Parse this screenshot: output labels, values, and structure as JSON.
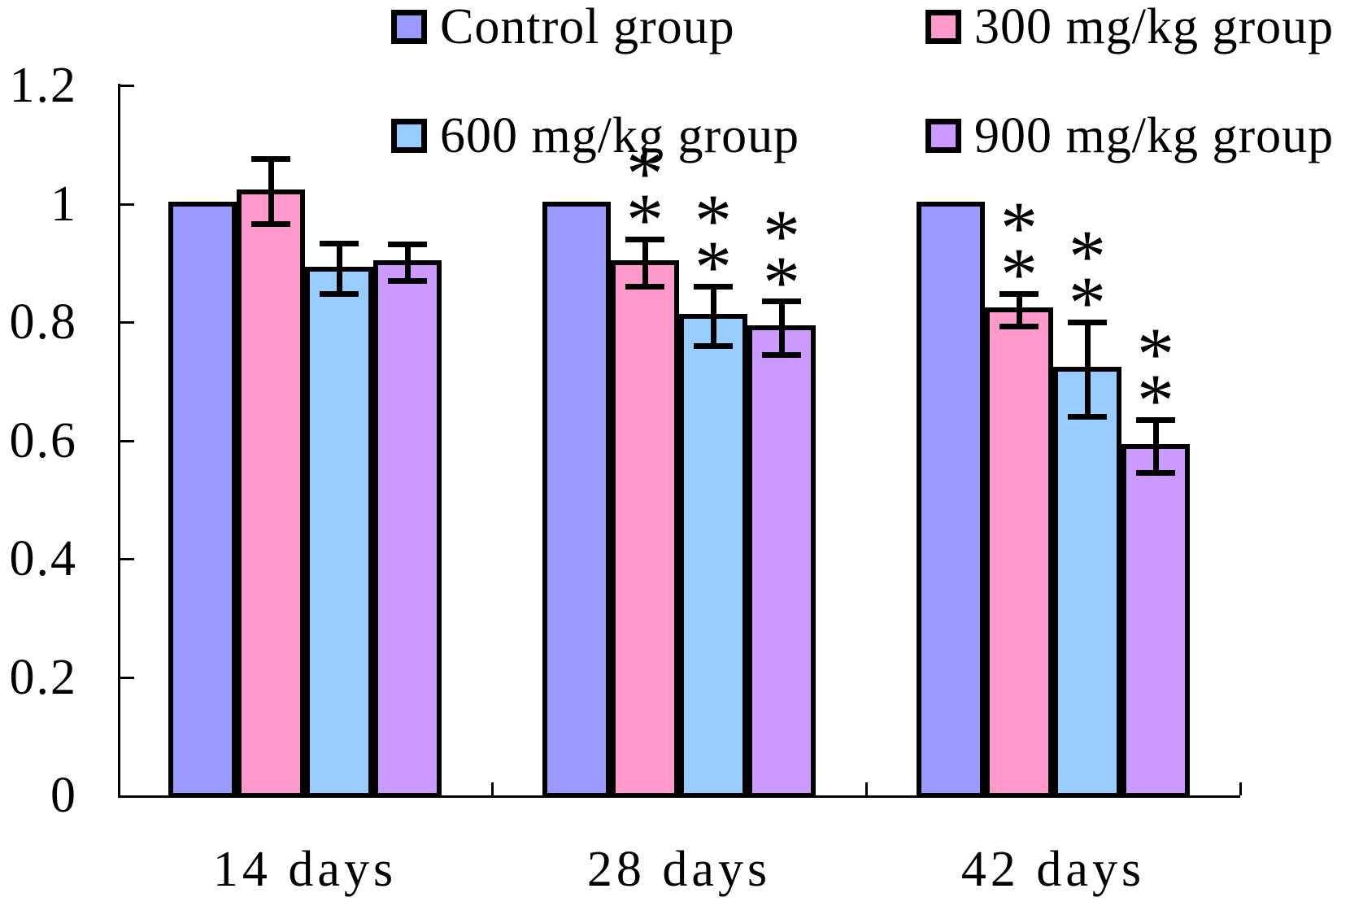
{
  "chart_data": {
    "type": "bar",
    "title": "",
    "xlabel": "",
    "ylabel": "",
    "categories": [
      "14 days",
      "28 days",
      "42 days"
    ],
    "series": [
      {
        "name": "Control group",
        "color": "#9999FF",
        "values": [
          1.0,
          1.0,
          1.0
        ],
        "errors": [
          null,
          null,
          null
        ],
        "significance": [
          "",
          "",
          ""
        ]
      },
      {
        "name": "300 mg/kg group",
        "color": "#FF99CC",
        "values": [
          1.02,
          0.9,
          0.82
        ],
        "errors": [
          0.055,
          0.04,
          0.028
        ],
        "significance": [
          "",
          "**",
          "**"
        ]
      },
      {
        "name": "600 mg/kg group",
        "color": "#99CCFF",
        "values": [
          0.89,
          0.81,
          0.72
        ],
        "errors": [
          0.042,
          0.05,
          0.08
        ],
        "significance": [
          "",
          "**",
          "**"
        ]
      },
      {
        "name": "900 mg/kg group",
        "color": "#CC99FF",
        "values": [
          0.9,
          0.79,
          0.59
        ],
        "errors": [
          0.031,
          0.045,
          0.045
        ],
        "significance": [
          "",
          "**",
          "**"
        ]
      }
    ],
    "ylim": [
      0,
      1.2
    ],
    "yticks": [
      0,
      0.2,
      0.4,
      0.6,
      0.8,
      1,
      1.2
    ],
    "ytick_labels": [
      "0",
      "0.2",
      "0.4",
      "0.6",
      "0.8",
      "1",
      "1.2"
    ],
    "grid": false,
    "legend_position": "top, two columns, two rows",
    "error_bars": "symmetric black whiskers with caps",
    "annotation_symbol": "*",
    "annotation_note": "asterisks stacked vertically above error bars mark significance",
    "colors": {
      "background": "#FFFFFF",
      "axis": "#000000",
      "bar_outline": "#000000",
      "text": "#000000"
    }
  }
}
